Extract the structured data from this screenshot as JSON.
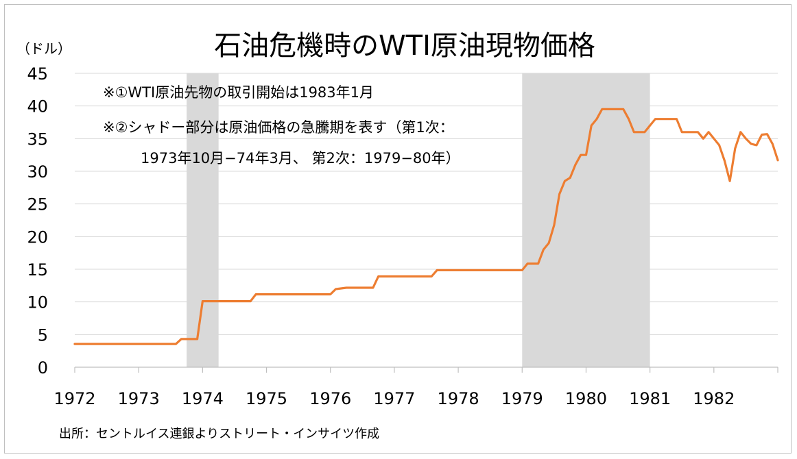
{
  "chart_data": {
    "type": "line",
    "title": "石油危機時のWTI原油現物価格",
    "ylabel": "（ドル）",
    "xlabel": "",
    "ylim": [
      0,
      45
    ],
    "yticks": [
      0,
      5,
      10,
      15,
      20,
      25,
      30,
      35,
      40,
      45
    ],
    "xlim": [
      1972,
      1983
    ],
    "xticks": [
      "1972",
      "1973",
      "1974",
      "1975",
      "1976",
      "1977",
      "1978",
      "1979",
      "1980",
      "1981",
      "1982"
    ],
    "grid": "horizontal",
    "line_color": "#ED7D31",
    "shade_color": "#d9d9d9",
    "shaded_periods": [
      {
        "start": "1973-10",
        "end": "1974-03"
      },
      {
        "start": "1979-01",
        "end": "1980-12"
      }
    ],
    "notes": [
      "※①WTI原油先物の取引開始は1983年1月",
      "※②シャドー部分は原油価格の急騰期を表す（第1次：",
      "1973年10月−74年3月、 第2次：1979−80年）"
    ],
    "source": "出所：セントルイス連銀よりストリート・インサイツ作成",
    "series": [
      {
        "points": [
          [
            1972.0,
            3.56
          ],
          [
            1973.0,
            3.56
          ],
          [
            1973.5,
            3.56
          ],
          [
            1973.583,
            3.56
          ],
          [
            1973.667,
            4.31
          ],
          [
            1973.75,
            4.31
          ],
          [
            1973.833,
            4.31
          ],
          [
            1973.917,
            4.31
          ],
          [
            1974.0,
            10.11
          ],
          [
            1974.75,
            10.11
          ],
          [
            1974.833,
            11.16
          ],
          [
            1975.0,
            11.16
          ],
          [
            1976.0,
            11.16
          ],
          [
            1976.083,
            11.96
          ],
          [
            1976.25,
            12.17
          ],
          [
            1976.5,
            12.17
          ],
          [
            1976.667,
            12.17
          ],
          [
            1976.75,
            13.9
          ],
          [
            1977.0,
            13.9
          ],
          [
            1977.583,
            13.9
          ],
          [
            1977.667,
            14.85
          ],
          [
            1978.0,
            14.85
          ],
          [
            1978.917,
            14.85
          ],
          [
            1979.0,
            14.85
          ],
          [
            1979.083,
            15.85
          ],
          [
            1979.25,
            15.85
          ],
          [
            1979.333,
            18.0
          ],
          [
            1979.417,
            19.0
          ],
          [
            1979.5,
            21.75
          ],
          [
            1979.583,
            26.5
          ],
          [
            1979.667,
            28.5
          ],
          [
            1979.75,
            29.0
          ],
          [
            1979.833,
            31.0
          ],
          [
            1979.917,
            32.5
          ],
          [
            1980.0,
            32.5
          ],
          [
            1980.083,
            37.0
          ],
          [
            1980.167,
            38.0
          ],
          [
            1980.25,
            39.5
          ],
          [
            1980.333,
            39.5
          ],
          [
            1980.5,
            39.5
          ],
          [
            1980.583,
            39.5
          ],
          [
            1980.667,
            38.0
          ],
          [
            1980.75,
            36.0
          ],
          [
            1980.833,
            36.0
          ],
          [
            1980.917,
            36.0
          ],
          [
            1981.0,
            37.0
          ],
          [
            1981.083,
            38.0
          ],
          [
            1981.167,
            38.0
          ],
          [
            1981.417,
            38.0
          ],
          [
            1981.5,
            36.0
          ],
          [
            1981.583,
            36.0
          ],
          [
            1981.667,
            36.0
          ],
          [
            1981.75,
            36.0
          ],
          [
            1981.833,
            35.0
          ],
          [
            1981.917,
            36.0
          ],
          [
            1982.0,
            35.0
          ],
          [
            1982.083,
            34.0
          ],
          [
            1982.167,
            31.6
          ],
          [
            1982.25,
            28.5
          ],
          [
            1982.333,
            33.5
          ],
          [
            1982.417,
            36.0
          ],
          [
            1982.5,
            35.0
          ],
          [
            1982.583,
            34.2
          ],
          [
            1982.667,
            34.0
          ],
          [
            1982.75,
            35.6
          ],
          [
            1982.833,
            35.7
          ],
          [
            1982.917,
            34.2
          ],
          [
            1983.0,
            31.7
          ]
        ]
      }
    ]
  }
}
